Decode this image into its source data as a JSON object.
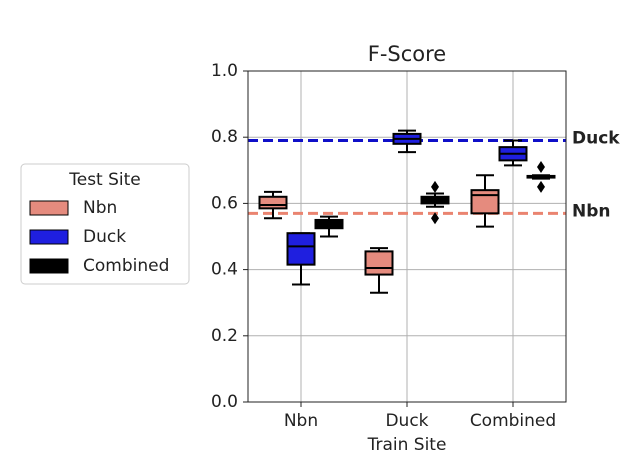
{
  "chart_data": {
    "type": "box",
    "title": "F-Score",
    "x_label": "Train Site",
    "categories": [
      "Nbn",
      "Duck",
      "Combined"
    ],
    "legend_title": "Test Site",
    "legend_position": "left",
    "series": [
      {
        "name": "Nbn",
        "color": "#e58b7e",
        "values": [
          {
            "min": 0.555,
            "q1": 0.585,
            "median": 0.595,
            "q3": 0.62,
            "max": 0.635,
            "outliers": []
          },
          {
            "min": 0.33,
            "q1": 0.385,
            "median": 0.405,
            "q3": 0.455,
            "max": 0.465,
            "outliers": []
          },
          {
            "min": 0.53,
            "q1": 0.57,
            "median": 0.625,
            "q3": 0.64,
            "max": 0.685,
            "outliers": []
          }
        ]
      },
      {
        "name": "Duck",
        "color": "#1f1fdf",
        "values": [
          {
            "min": 0.355,
            "q1": 0.415,
            "median": 0.47,
            "q3": 0.51,
            "max": 0.51,
            "outliers": []
          },
          {
            "min": 0.755,
            "q1": 0.78,
            "median": 0.795,
            "q3": 0.81,
            "max": 0.82,
            "outliers": []
          },
          {
            "min": 0.715,
            "q1": 0.73,
            "median": 0.75,
            "q3": 0.77,
            "max": 0.79,
            "outliers": []
          }
        ]
      },
      {
        "name": "Combined",
        "color": "#000000",
        "values": [
          {
            "min": 0.5,
            "q1": 0.525,
            "median": 0.54,
            "q3": 0.55,
            "max": 0.56,
            "outliers": []
          },
          {
            "min": 0.59,
            "q1": 0.6,
            "median": 0.61,
            "q3": 0.62,
            "max": 0.63,
            "outliers": [
              0.555,
              0.65
            ]
          },
          {
            "min": 0.675,
            "q1": 0.678,
            "median": 0.68,
            "q3": 0.683,
            "max": 0.685,
            "outliers": [
              0.65,
              0.71
            ]
          }
        ]
      }
    ],
    "reference_lines": [
      {
        "label": "Duck",
        "value": 0.79,
        "color": "#0f0fc8"
      },
      {
        "label": "Nbn",
        "value": 0.57,
        "color": "#ea8470"
      }
    ],
    "ylim": [
      0,
      1
    ],
    "yticks": [
      {
        "value": 0,
        "label": "0.0"
      },
      0.2,
      0.4,
      0.6,
      0.8,
      {
        "value": 1,
        "label": "1.0"
      }
    ],
    "grid": true
  }
}
